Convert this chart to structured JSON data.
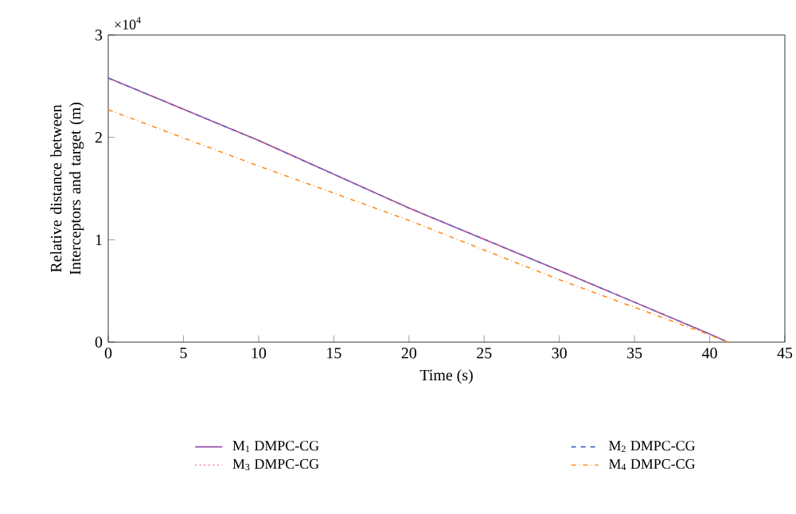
{
  "chart_data": {
    "type": "line",
    "xlabel": "Time (s)",
    "ylabel": "Relative distance between Interceptors and target (m)",
    "annotations": [
      "×10$^{4}$"
    ],
    "xlim": [
      0,
      45
    ],
    "xticks": [
      0,
      5,
      10,
      15,
      20,
      25,
      30,
      35,
      40,
      45
    ],
    "ylim": [
      0,
      3
    ],
    "yticks": [
      0,
      1,
      2,
      3
    ],
    "legend": "bottom",
    "grid": false,
    "series": [
      {
        "name": "M$_{1}$ DMPC-CG",
        "color": "#9b4fb0",
        "line_style": "solid",
        "x": [
          0,
          10,
          20,
          30,
          40,
          41.2
        ],
        "values": [
          2.58,
          1.97,
          1.31,
          0.7,
          0.08,
          0
        ]
      },
      {
        "name": "M$_{2}$ DMPC-CG",
        "color": "#4a68c8",
        "line_style": "dashed",
        "x": [
          0,
          10,
          20,
          30,
          40,
          41.2
        ],
        "values": [
          2.58,
          1.97,
          1.31,
          0.7,
          0.08,
          0
        ]
      },
      {
        "name": "M$_{3}$ DMPC-CG",
        "color": "#f0606a",
        "line_style": "dotted",
        "x": [
          0,
          10,
          20,
          30,
          40,
          41.2
        ],
        "values": [
          2.58,
          1.97,
          1.31,
          0.7,
          0.08,
          0
        ]
      },
      {
        "name": "M$_{4}$ DMPC-CG",
        "color": "#ff8c1a",
        "line_style": "dashdotted",
        "x": [
          0,
          10,
          20,
          30,
          40,
          41.2
        ],
        "values": [
          2.27,
          1.72,
          1.19,
          0.61,
          0.07,
          0
        ]
      }
    ]
  }
}
